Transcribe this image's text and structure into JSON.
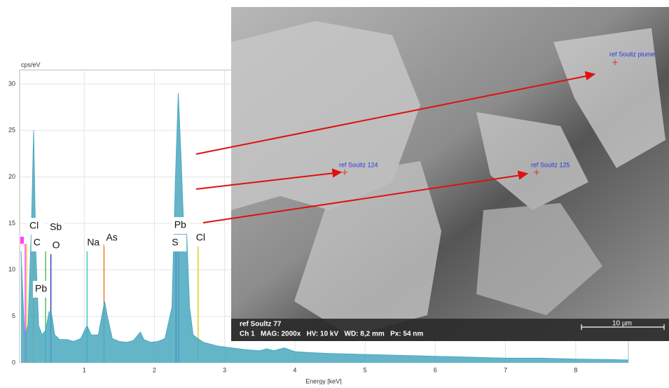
{
  "chart_data": {
    "type": "area",
    "y_label": "cps/eV",
    "x_label": "Energy [keV]",
    "xlim": [
      0.08,
      8.75
    ],
    "xticks": [
      1,
      2,
      3,
      4,
      5,
      6,
      7,
      8
    ],
    "ylim": [
      0,
      31.5
    ],
    "yticks": [
      0,
      5,
      10,
      15,
      20,
      25,
      30
    ],
    "grid": true,
    "series": [
      {
        "color": "#4aa8c0",
        "x": [
          0.1,
          0.15,
          0.2,
          0.25,
          0.28,
          0.31,
          0.35,
          0.4,
          0.45,
          0.5,
          0.53,
          0.58,
          0.65,
          0.75,
          0.85,
          0.95,
          1.04,
          1.1,
          1.2,
          1.25,
          1.29,
          1.33,
          1.4,
          1.5,
          1.6,
          1.7,
          1.8,
          1.85,
          1.95,
          2.05,
          2.15,
          2.25,
          2.3,
          2.34,
          2.38,
          2.42,
          2.46,
          2.5,
          2.55,
          2.62,
          2.7,
          2.9,
          3.1,
          3.3,
          3.5,
          3.6,
          3.7,
          3.85,
          4.0,
          4.2,
          4.5,
          5.0,
          5.5,
          6.0,
          6.5,
          7.0,
          7.5,
          8.0,
          8.5,
          8.75
        ],
        "values": [
          12,
          3,
          4,
          15,
          25,
          12,
          4,
          3,
          3.5,
          5.5,
          5.5,
          3,
          2.5,
          2.5,
          2.3,
          2.6,
          4,
          3,
          3,
          5,
          6.6,
          5,
          2.6,
          2.3,
          2.2,
          2.4,
          3.3,
          2.5,
          2.2,
          2.3,
          2.6,
          6,
          20,
          29,
          22,
          14,
          14,
          6,
          3,
          2.6,
          2.2,
          1.8,
          1.6,
          1.4,
          1.3,
          1.5,
          1.3,
          1.6,
          1.2,
          1.1,
          1.0,
          0.9,
          0.8,
          0.7,
          0.6,
          0.5,
          0.5,
          0.4,
          0.35,
          0.3
        ]
      }
    ],
    "markers": [
      {
        "label": "Cl",
        "energy": 0.18,
        "color": "#e8d040"
      },
      {
        "label": "C",
        "energy": 0.277,
        "color": "#e8c030"
      },
      {
        "label": "Sb",
        "energy": 0.45,
        "color": "#50c060"
      },
      {
        "label": "O",
        "energy": 0.525,
        "color": "#3040c0"
      },
      {
        "label": "Pb",
        "energy": 0.16,
        "color": "#ff40ff"
      },
      {
        "label": "Na",
        "energy": 1.041,
        "color": "#40c8c8"
      },
      {
        "label": "As",
        "energy": 1.282,
        "color": "#e08020"
      },
      {
        "label": "Pb",
        "energy": 2.342,
        "color": "#8040d0"
      },
      {
        "label": "S",
        "energy": 2.307,
        "color": "#5030c0"
      },
      {
        "label": "Cl",
        "energy": 2.622,
        "color": "#e0d020"
      }
    ]
  },
  "image": {
    "labels": [
      "ref Soultz plume",
      "ref Soultz 124",
      "ref Soultz 125"
    ],
    "info_name": "ref Soultz 77",
    "info_line": "Ch 1   MAG: 2000x   HV: 10 kV   WD: 8,2 mm   Px: 54 nm",
    "scale": "10 µm"
  }
}
